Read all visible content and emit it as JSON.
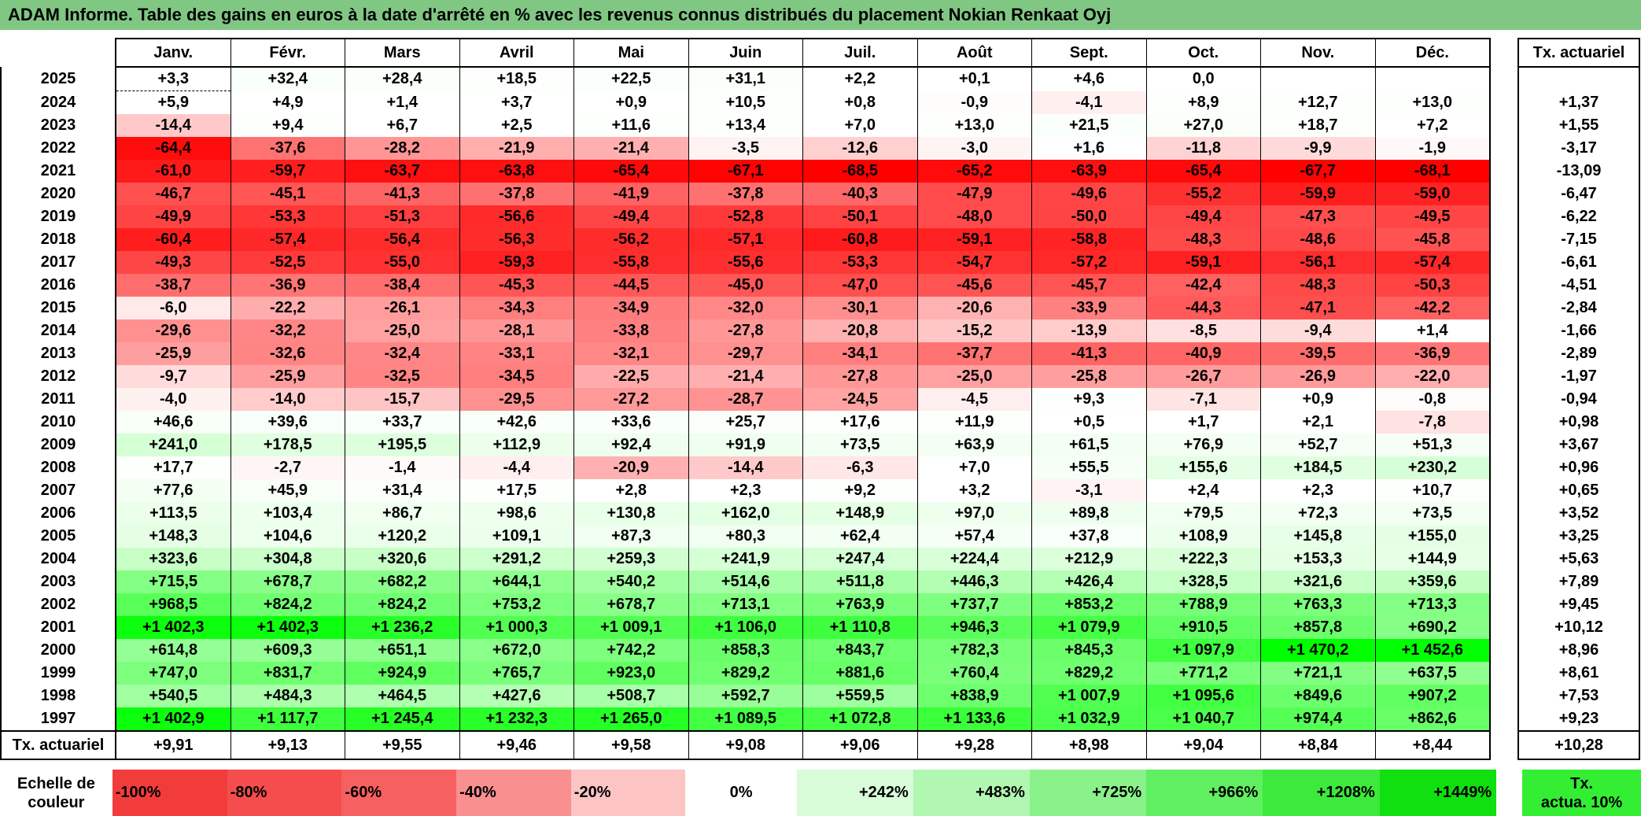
{
  "title": "ADAM Informe. Table des gains en euros à la date d'arrêté en % avec les revenus connus distribués du placement Nokian Renkaat Oyj",
  "months": [
    "Janv.",
    "Févr.",
    "Mars",
    "Avril",
    "Mai",
    "Juin",
    "Juil.",
    "Août",
    "Sept.",
    "Oct.",
    "Nov.",
    "Déc."
  ],
  "rate_header": "Tx. actuariel",
  "rows": [
    {
      "year": "2025",
      "vals": [
        "+3,3",
        "+32,4",
        "+28,4",
        "+18,5",
        "+22,5",
        "+31,1",
        "+2,2",
        "+0,1",
        "+4,6",
        "0,0",
        "",
        ""
      ],
      "rate": ""
    },
    {
      "year": "2024",
      "vals": [
        "+5,9",
        "+4,9",
        "+1,4",
        "+3,7",
        "+0,9",
        "+10,5",
        "+0,8",
        "-0,9",
        "-4,1",
        "+8,9",
        "+12,7",
        "+13,0"
      ],
      "rate": "+1,37"
    },
    {
      "year": "2023",
      "vals": [
        "-14,4",
        "+9,4",
        "+6,7",
        "+2,5",
        "+11,6",
        "+13,4",
        "+7,0",
        "+13,0",
        "+21,5",
        "+27,0",
        "+18,7",
        "+7,2"
      ],
      "rate": "+1,55"
    },
    {
      "year": "2022",
      "vals": [
        "-64,4",
        "-37,6",
        "-28,2",
        "-21,9",
        "-21,4",
        "-3,5",
        "-12,6",
        "-3,0",
        "+1,6",
        "-11,8",
        "-9,9",
        "-1,9"
      ],
      "rate": "-3,17"
    },
    {
      "year": "2021",
      "vals": [
        "-61,0",
        "-59,7",
        "-63,7",
        "-63,8",
        "-65,4",
        "-67,1",
        "-68,5",
        "-65,2",
        "-63,9",
        "-65,4",
        "-67,7",
        "-68,1"
      ],
      "rate": "-13,09"
    },
    {
      "year": "2020",
      "vals": [
        "-46,7",
        "-45,1",
        "-41,3",
        "-37,8",
        "-41,9",
        "-37,8",
        "-40,3",
        "-47,9",
        "-49,6",
        "-55,2",
        "-59,9",
        "-59,0"
      ],
      "rate": "-6,47"
    },
    {
      "year": "2019",
      "vals": [
        "-49,9",
        "-53,3",
        "-51,3",
        "-56,6",
        "-49,4",
        "-52,8",
        "-50,1",
        "-48,0",
        "-50,0",
        "-49,4",
        "-47,3",
        "-49,5"
      ],
      "rate": "-6,22"
    },
    {
      "year": "2018",
      "vals": [
        "-60,4",
        "-57,4",
        "-56,4",
        "-56,3",
        "-56,2",
        "-57,1",
        "-60,8",
        "-59,1",
        "-58,8",
        "-48,3",
        "-48,6",
        "-45,8"
      ],
      "rate": "-7,15"
    },
    {
      "year": "2017",
      "vals": [
        "-49,3",
        "-52,5",
        "-55,0",
        "-59,3",
        "-55,8",
        "-55,6",
        "-53,3",
        "-54,7",
        "-57,2",
        "-59,1",
        "-56,1",
        "-57,4"
      ],
      "rate": "-6,61"
    },
    {
      "year": "2016",
      "vals": [
        "-38,7",
        "-36,9",
        "-38,4",
        "-45,3",
        "-44,5",
        "-45,0",
        "-47,0",
        "-45,6",
        "-45,7",
        "-42,4",
        "-48,3",
        "-50,3"
      ],
      "rate": "-4,51"
    },
    {
      "year": "2015",
      "vals": [
        "-6,0",
        "-22,2",
        "-26,1",
        "-34,3",
        "-34,9",
        "-32,0",
        "-30,1",
        "-20,6",
        "-33,9",
        "-44,3",
        "-47,1",
        "-42,2"
      ],
      "rate": "-2,84"
    },
    {
      "year": "2014",
      "vals": [
        "-29,6",
        "-32,2",
        "-25,0",
        "-28,1",
        "-33,8",
        "-27,8",
        "-20,8",
        "-15,2",
        "-13,9",
        "-8,5",
        "-9,4",
        "+1,4"
      ],
      "rate": "-1,66"
    },
    {
      "year": "2013",
      "vals": [
        "-25,9",
        "-32,6",
        "-32,4",
        "-33,1",
        "-32,1",
        "-29,7",
        "-34,1",
        "-37,7",
        "-41,3",
        "-40,9",
        "-39,5",
        "-36,9"
      ],
      "rate": "-2,89"
    },
    {
      "year": "2012",
      "vals": [
        "-9,7",
        "-25,9",
        "-32,5",
        "-34,5",
        "-22,5",
        "-21,4",
        "-27,8",
        "-25,0",
        "-25,8",
        "-26,7",
        "-26,9",
        "-22,0"
      ],
      "rate": "-1,97"
    },
    {
      "year": "2011",
      "vals": [
        "-4,0",
        "-14,0",
        "-15,7",
        "-29,5",
        "-27,2",
        "-28,7",
        "-24,5",
        "-4,5",
        "+9,3",
        "-7,1",
        "+0,9",
        "-0,8"
      ],
      "rate": "-0,94"
    },
    {
      "year": "2010",
      "vals": [
        "+46,6",
        "+39,6",
        "+33,7",
        "+42,6",
        "+33,6",
        "+25,7",
        "+17,6",
        "+11,9",
        "+0,5",
        "+1,7",
        "+2,1",
        "-7,8"
      ],
      "rate": "+0,98"
    },
    {
      "year": "2009",
      "vals": [
        "+241,0",
        "+178,5",
        "+195,5",
        "+112,9",
        "+92,4",
        "+91,9",
        "+73,5",
        "+63,9",
        "+61,5",
        "+76,9",
        "+52,7",
        "+51,3"
      ],
      "rate": "+3,67"
    },
    {
      "year": "2008",
      "vals": [
        "+17,7",
        "-2,7",
        "-1,4",
        "-4,4",
        "-20,9",
        "-14,4",
        "-6,3",
        "+7,0",
        "+55,5",
        "+155,6",
        "+184,5",
        "+230,2"
      ],
      "rate": "+0,96"
    },
    {
      "year": "2007",
      "vals": [
        "+77,6",
        "+45,9",
        "+31,4",
        "+17,5",
        "+2,8",
        "+2,3",
        "+9,2",
        "+3,2",
        "-3,1",
        "+2,4",
        "+2,3",
        "+10,7"
      ],
      "rate": "+0,65"
    },
    {
      "year": "2006",
      "vals": [
        "+113,5",
        "+103,4",
        "+86,7",
        "+98,6",
        "+130,8",
        "+162,0",
        "+148,9",
        "+97,0",
        "+89,8",
        "+79,5",
        "+72,3",
        "+73,5"
      ],
      "rate": "+3,52"
    },
    {
      "year": "2005",
      "vals": [
        "+148,3",
        "+104,6",
        "+120,2",
        "+109,1",
        "+87,3",
        "+80,3",
        "+62,4",
        "+57,4",
        "+37,8",
        "+108,9",
        "+145,8",
        "+155,0"
      ],
      "rate": "+3,25"
    },
    {
      "year": "2004",
      "vals": [
        "+323,6",
        "+304,8",
        "+320,6",
        "+291,2",
        "+259,3",
        "+241,9",
        "+247,4",
        "+224,4",
        "+212,9",
        "+222,3",
        "+153,3",
        "+144,9"
      ],
      "rate": "+5,63"
    },
    {
      "year": "2003",
      "vals": [
        "+715,5",
        "+678,7",
        "+682,2",
        "+644,1",
        "+540,2",
        "+514,6",
        "+511,8",
        "+446,3",
        "+426,4",
        "+328,5",
        "+321,6",
        "+359,6"
      ],
      "rate": "+7,89"
    },
    {
      "year": "2002",
      "vals": [
        "+968,5",
        "+824,2",
        "+824,2",
        "+753,2",
        "+678,7",
        "+713,1",
        "+763,9",
        "+737,7",
        "+853,2",
        "+788,9",
        "+763,3",
        "+713,3"
      ],
      "rate": "+9,45"
    },
    {
      "year": "2001",
      "vals": [
        "+1 402,3",
        "+1 402,3",
        "+1 236,2",
        "+1 000,3",
        "+1 009,1",
        "+1 106,0",
        "+1 110,8",
        "+946,3",
        "+1 079,9",
        "+910,5",
        "+857,8",
        "+690,2"
      ],
      "rate": "+10,12"
    },
    {
      "year": "2000",
      "vals": [
        "+614,8",
        "+609,3",
        "+651,1",
        "+672,0",
        "+742,2",
        "+858,3",
        "+843,7",
        "+782,3",
        "+845,3",
        "+1 097,9",
        "+1 470,2",
        "+1 452,6"
      ],
      "rate": "+8,96"
    },
    {
      "year": "1999",
      "vals": [
        "+747,0",
        "+831,7",
        "+924,9",
        "+765,7",
        "+923,0",
        "+829,2",
        "+881,6",
        "+760,4",
        "+829,2",
        "+771,2",
        "+721,1",
        "+637,5"
      ],
      "rate": "+8,61"
    },
    {
      "year": "1998",
      "vals": [
        "+540,5",
        "+484,3",
        "+464,5",
        "+427,6",
        "+508,7",
        "+592,7",
        "+559,5",
        "+838,9",
        "+1 007,9",
        "+1 095,6",
        "+849,6",
        "+907,2"
      ],
      "rate": "+7,53"
    },
    {
      "year": "1997",
      "vals": [
        "+1 402,9",
        "+1 117,7",
        "+1 245,4",
        "+1 232,3",
        "+1 265,0",
        "+1 089,5",
        "+1 072,8",
        "+1 133,6",
        "+1 032,9",
        "+1 040,7",
        "+974,4",
        "+862,6"
      ],
      "rate": "+9,23"
    }
  ],
  "actuarial_row": {
    "label": "Tx. actuariel",
    "vals": [
      "+9,91",
      "+9,13",
      "+9,55",
      "+9,46",
      "+9,58",
      "+9,08",
      "+9,06",
      "+9,28",
      "+8,98",
      "+9,04",
      "+8,84",
      "+8,44"
    ],
    "total": "+10,28"
  },
  "scale": {
    "label_line1": "Echelle de",
    "label_line2": "couleur",
    "steps": [
      "-100%",
      "-80%",
      "-60%",
      "-40%",
      "-20%",
      "0%",
      "+242%",
      "+483%",
      "+725%",
      "+966%",
      "+1208%",
      "+1449%"
    ],
    "colors": [
      "#f23c3c",
      "#f54d4d",
      "#f76060",
      "#fa8f8f",
      "#fdc4c4",
      "#ffffff",
      "#d8fbd8",
      "#b1f7b1",
      "#8af28a",
      "#60ef60",
      "#3de93d",
      "#10df10"
    ],
    "rate_line1": "Tx.",
    "rate_line2": "actua. 10%",
    "rate_color": "#33ee33"
  }
}
